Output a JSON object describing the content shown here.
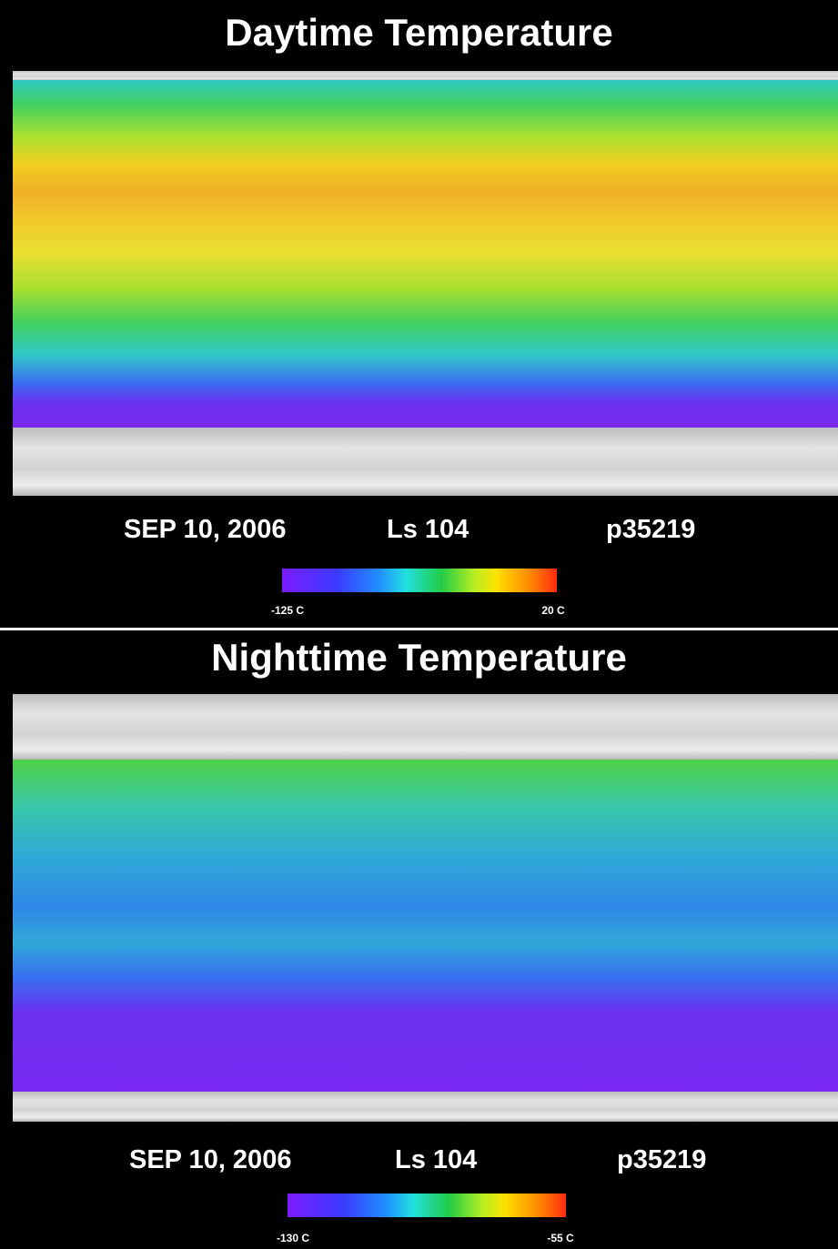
{
  "panels": [
    {
      "title": "Daytime Temperature",
      "date": "SEP 10, 2006",
      "solar_longitude": "Ls 104",
      "product": "p35219",
      "colorbar": {
        "min_label": "-125 C",
        "max_label": "20 C"
      }
    },
    {
      "title": "Nighttime Temperature",
      "date": "SEP 10, 2006",
      "solar_longitude": "Ls 104",
      "product": "p35219",
      "colorbar": {
        "min_label": "-130 C",
        "max_label": "-55 C"
      }
    }
  ]
}
